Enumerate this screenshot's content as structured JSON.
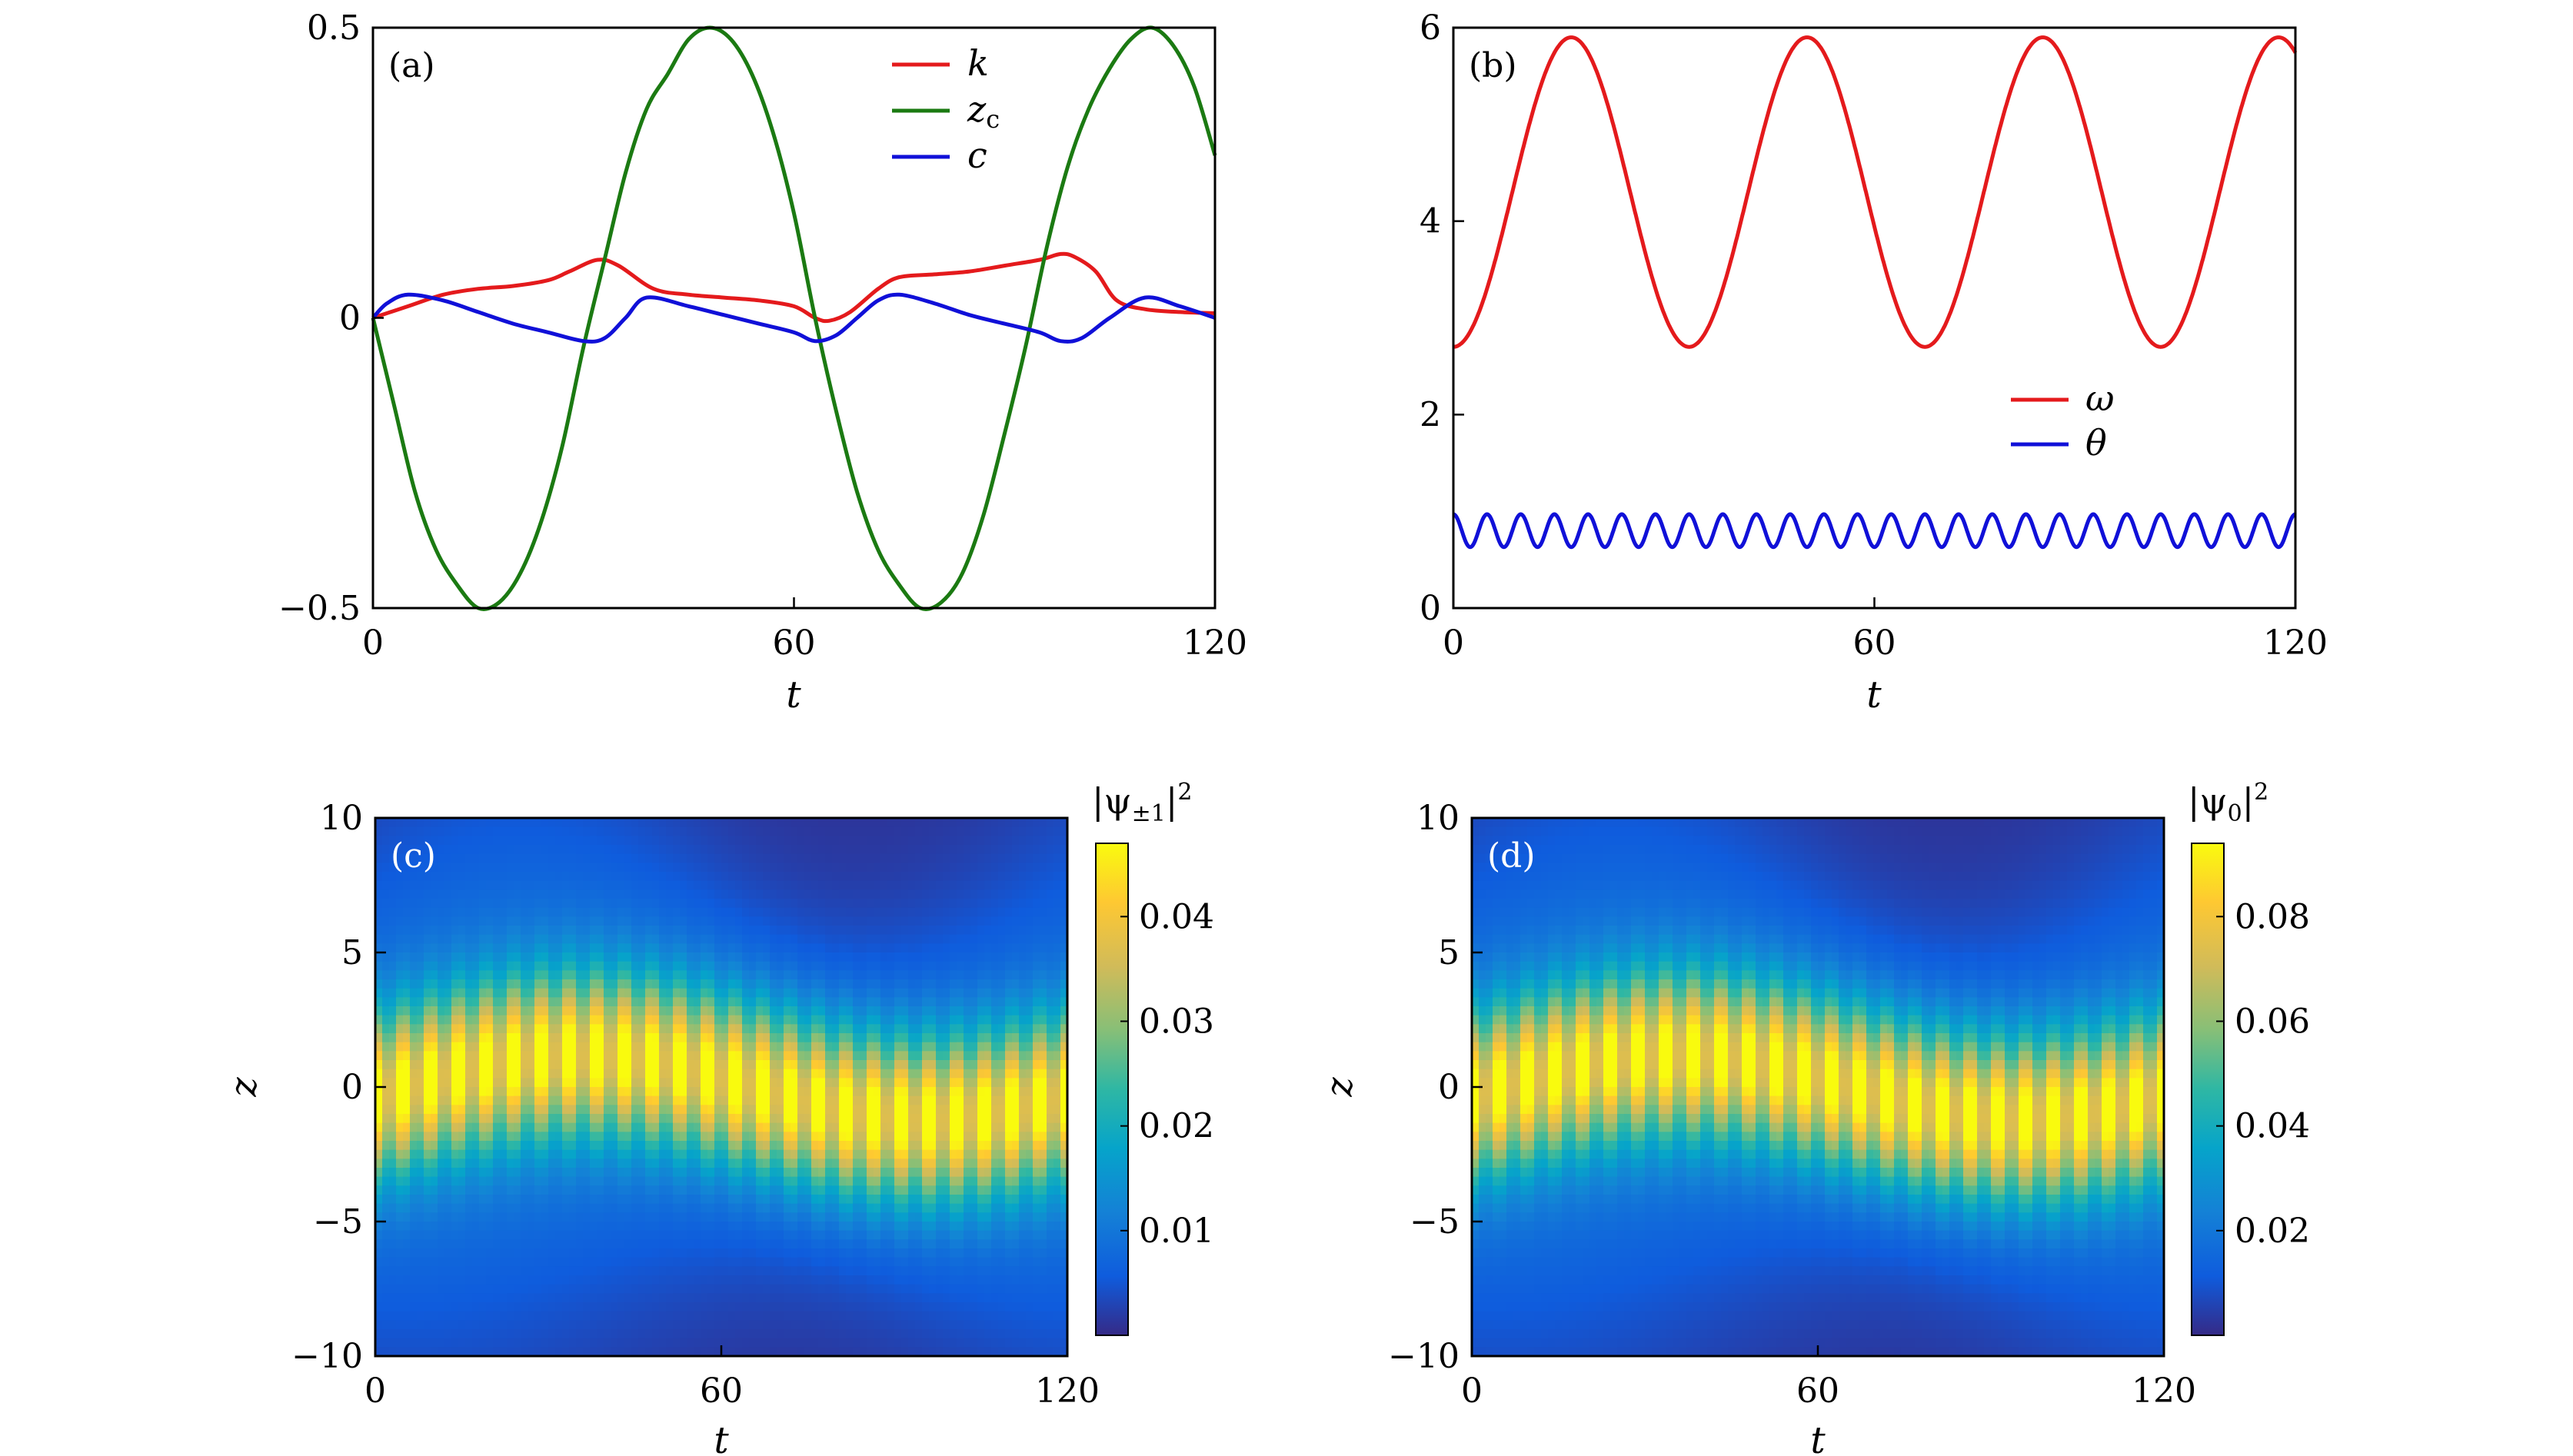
{
  "chart_data": [
    {
      "panel": "(a)",
      "type": "line",
      "xlabel": "t",
      "ylabel": "",
      "xlim": [
        0,
        120
      ],
      "ylim": [
        -0.5,
        0.5
      ],
      "xticks": [
        0,
        60,
        120
      ],
      "yticks": [
        -0.5,
        0,
        0.5
      ],
      "ytick_labels": [
        "−0.5",
        "0",
        "0.5"
      ],
      "legend": "top-right",
      "series": [
        {
          "name": "k",
          "color": "#e41a1c",
          "x": [
            0,
            5,
            10,
            15,
            20,
            25,
            28,
            32,
            35,
            40,
            45,
            50,
            55,
            60,
            63,
            65,
            68,
            72,
            75,
            80,
            85,
            90,
            95,
            98,
            100,
            103,
            106,
            110,
            115,
            120
          ],
          "y": [
            0.0,
            0.02,
            0.04,
            0.05,
            0.055,
            0.065,
            0.08,
            0.1,
            0.09,
            0.05,
            0.04,
            0.035,
            0.03,
            0.02,
            0.0,
            -0.005,
            0.01,
            0.05,
            0.07,
            0.075,
            0.08,
            0.09,
            0.1,
            0.11,
            0.105,
            0.08,
            0.03,
            0.015,
            0.01,
            0.008
          ]
        },
        {
          "name": "z_c",
          "label_base": "z",
          "label_sub": "c",
          "color": "#1b7a12",
          "x": [
            0,
            3,
            6,
            9,
            12,
            15,
            18,
            21,
            24,
            27,
            30,
            33,
            36,
            39,
            42,
            45,
            48,
            51,
            54,
            57,
            60,
            63,
            66,
            69,
            72,
            75,
            78,
            81,
            84,
            87,
            90,
            93,
            96,
            99,
            102,
            105,
            108,
            111,
            114,
            117,
            120
          ],
          "y": [
            0.0,
            -0.15,
            -0.3,
            -0.4,
            -0.46,
            -0.5,
            -0.49,
            -0.44,
            -0.35,
            -0.22,
            -0.05,
            0.1,
            0.25,
            0.36,
            0.42,
            0.48,
            0.5,
            0.48,
            0.42,
            0.32,
            0.18,
            0.0,
            -0.16,
            -0.3,
            -0.4,
            -0.46,
            -0.5,
            -0.49,
            -0.44,
            -0.34,
            -0.2,
            -0.05,
            0.12,
            0.26,
            0.36,
            0.43,
            0.48,
            0.5,
            0.47,
            0.4,
            0.28
          ]
        },
        {
          "name": "c",
          "color": "#1010d8",
          "x": [
            0,
            2,
            5,
            10,
            15,
            20,
            25,
            30,
            33,
            36,
            39,
            45,
            50,
            55,
            60,
            63,
            66,
            69,
            72,
            75,
            80,
            85,
            90,
            95,
            98,
            101,
            105,
            110,
            115,
            120
          ],
          "y": [
            0.0,
            0.025,
            0.04,
            0.03,
            0.01,
            -0.01,
            -0.025,
            -0.04,
            -0.035,
            0.0,
            0.035,
            0.02,
            0.005,
            -0.01,
            -0.025,
            -0.04,
            -0.03,
            0.0,
            0.03,
            0.04,
            0.025,
            0.005,
            -0.01,
            -0.025,
            -0.04,
            -0.035,
            0.0,
            0.035,
            0.02,
            0.0
          ]
        }
      ]
    },
    {
      "panel": "(b)",
      "type": "line",
      "xlabel": "t",
      "ylabel": "",
      "xlim": [
        0,
        120
      ],
      "ylim": [
        0,
        6
      ],
      "xticks": [
        0,
        60,
        120
      ],
      "yticks": [
        0,
        2,
        4,
        6
      ],
      "legend": "center-right",
      "series": [
        {
          "name": "ω",
          "color": "#e41a1c",
          "model": "sinusoid",
          "mean": 4.3,
          "amplitude": 1.6,
          "period": 33.6,
          "phase_start": "minimum",
          "start_value": 2.7
        },
        {
          "name": "θ",
          "color": "#1010d8",
          "model": "sinusoid",
          "mean": 0.8,
          "amplitude": 0.17,
          "period": 4.8,
          "phase_start": "maximum"
        }
      ]
    },
    {
      "panel": "(c)",
      "type": "heatmap",
      "xlabel": "t",
      "ylabel": "z",
      "xlim": [
        0,
        120
      ],
      "ylim": [
        -10,
        10
      ],
      "xticks": [
        0,
        60,
        120
      ],
      "yticks": [
        -10,
        -5,
        0,
        5,
        10
      ],
      "ytick_labels": [
        "−10",
        "−5",
        "0",
        "5",
        "10"
      ],
      "colorbar_title_base": "|ψ",
      "colorbar_title_sub": "±1",
      "colorbar_title_end": "|",
      "colorbar_title_sup": "2",
      "colorbar_range": [
        0,
        0.047
      ],
      "colorbar_ticks": [
        0.01,
        0.02,
        0.03,
        0.04
      ],
      "colorbar_tick_labels": [
        "0.01",
        "0.02",
        "0.03",
        "0.04"
      ],
      "colormap": "parula",
      "pulse_count": 25,
      "peak_value": 0.047,
      "core_halfwidth": 3,
      "outer_halfwidth": 8,
      "centroid_shift_amplitude": 1.2
    },
    {
      "panel": "(d)",
      "type": "heatmap",
      "xlabel": "t",
      "ylabel": "z",
      "xlim": [
        0,
        120
      ],
      "ylim": [
        -10,
        10
      ],
      "xticks": [
        0,
        60,
        120
      ],
      "yticks": [
        -10,
        -5,
        0,
        5,
        10
      ],
      "ytick_labels": [
        "−10",
        "−5",
        "0",
        "5",
        "10"
      ],
      "colorbar_title_base": "|ψ",
      "colorbar_title_sub": "0",
      "colorbar_title_end": "|",
      "colorbar_title_sup": "2",
      "colorbar_range": [
        0,
        0.094
      ],
      "colorbar_ticks": [
        0.02,
        0.04,
        0.06,
        0.08
      ],
      "colorbar_tick_labels": [
        "0.02",
        "0.04",
        "0.06",
        "0.08"
      ],
      "colormap": "parula",
      "pulse_count": 25,
      "peak_value": 0.094,
      "core_halfwidth": 3,
      "outer_halfwidth": 8,
      "centroid_shift_amplitude": 1.2
    }
  ]
}
